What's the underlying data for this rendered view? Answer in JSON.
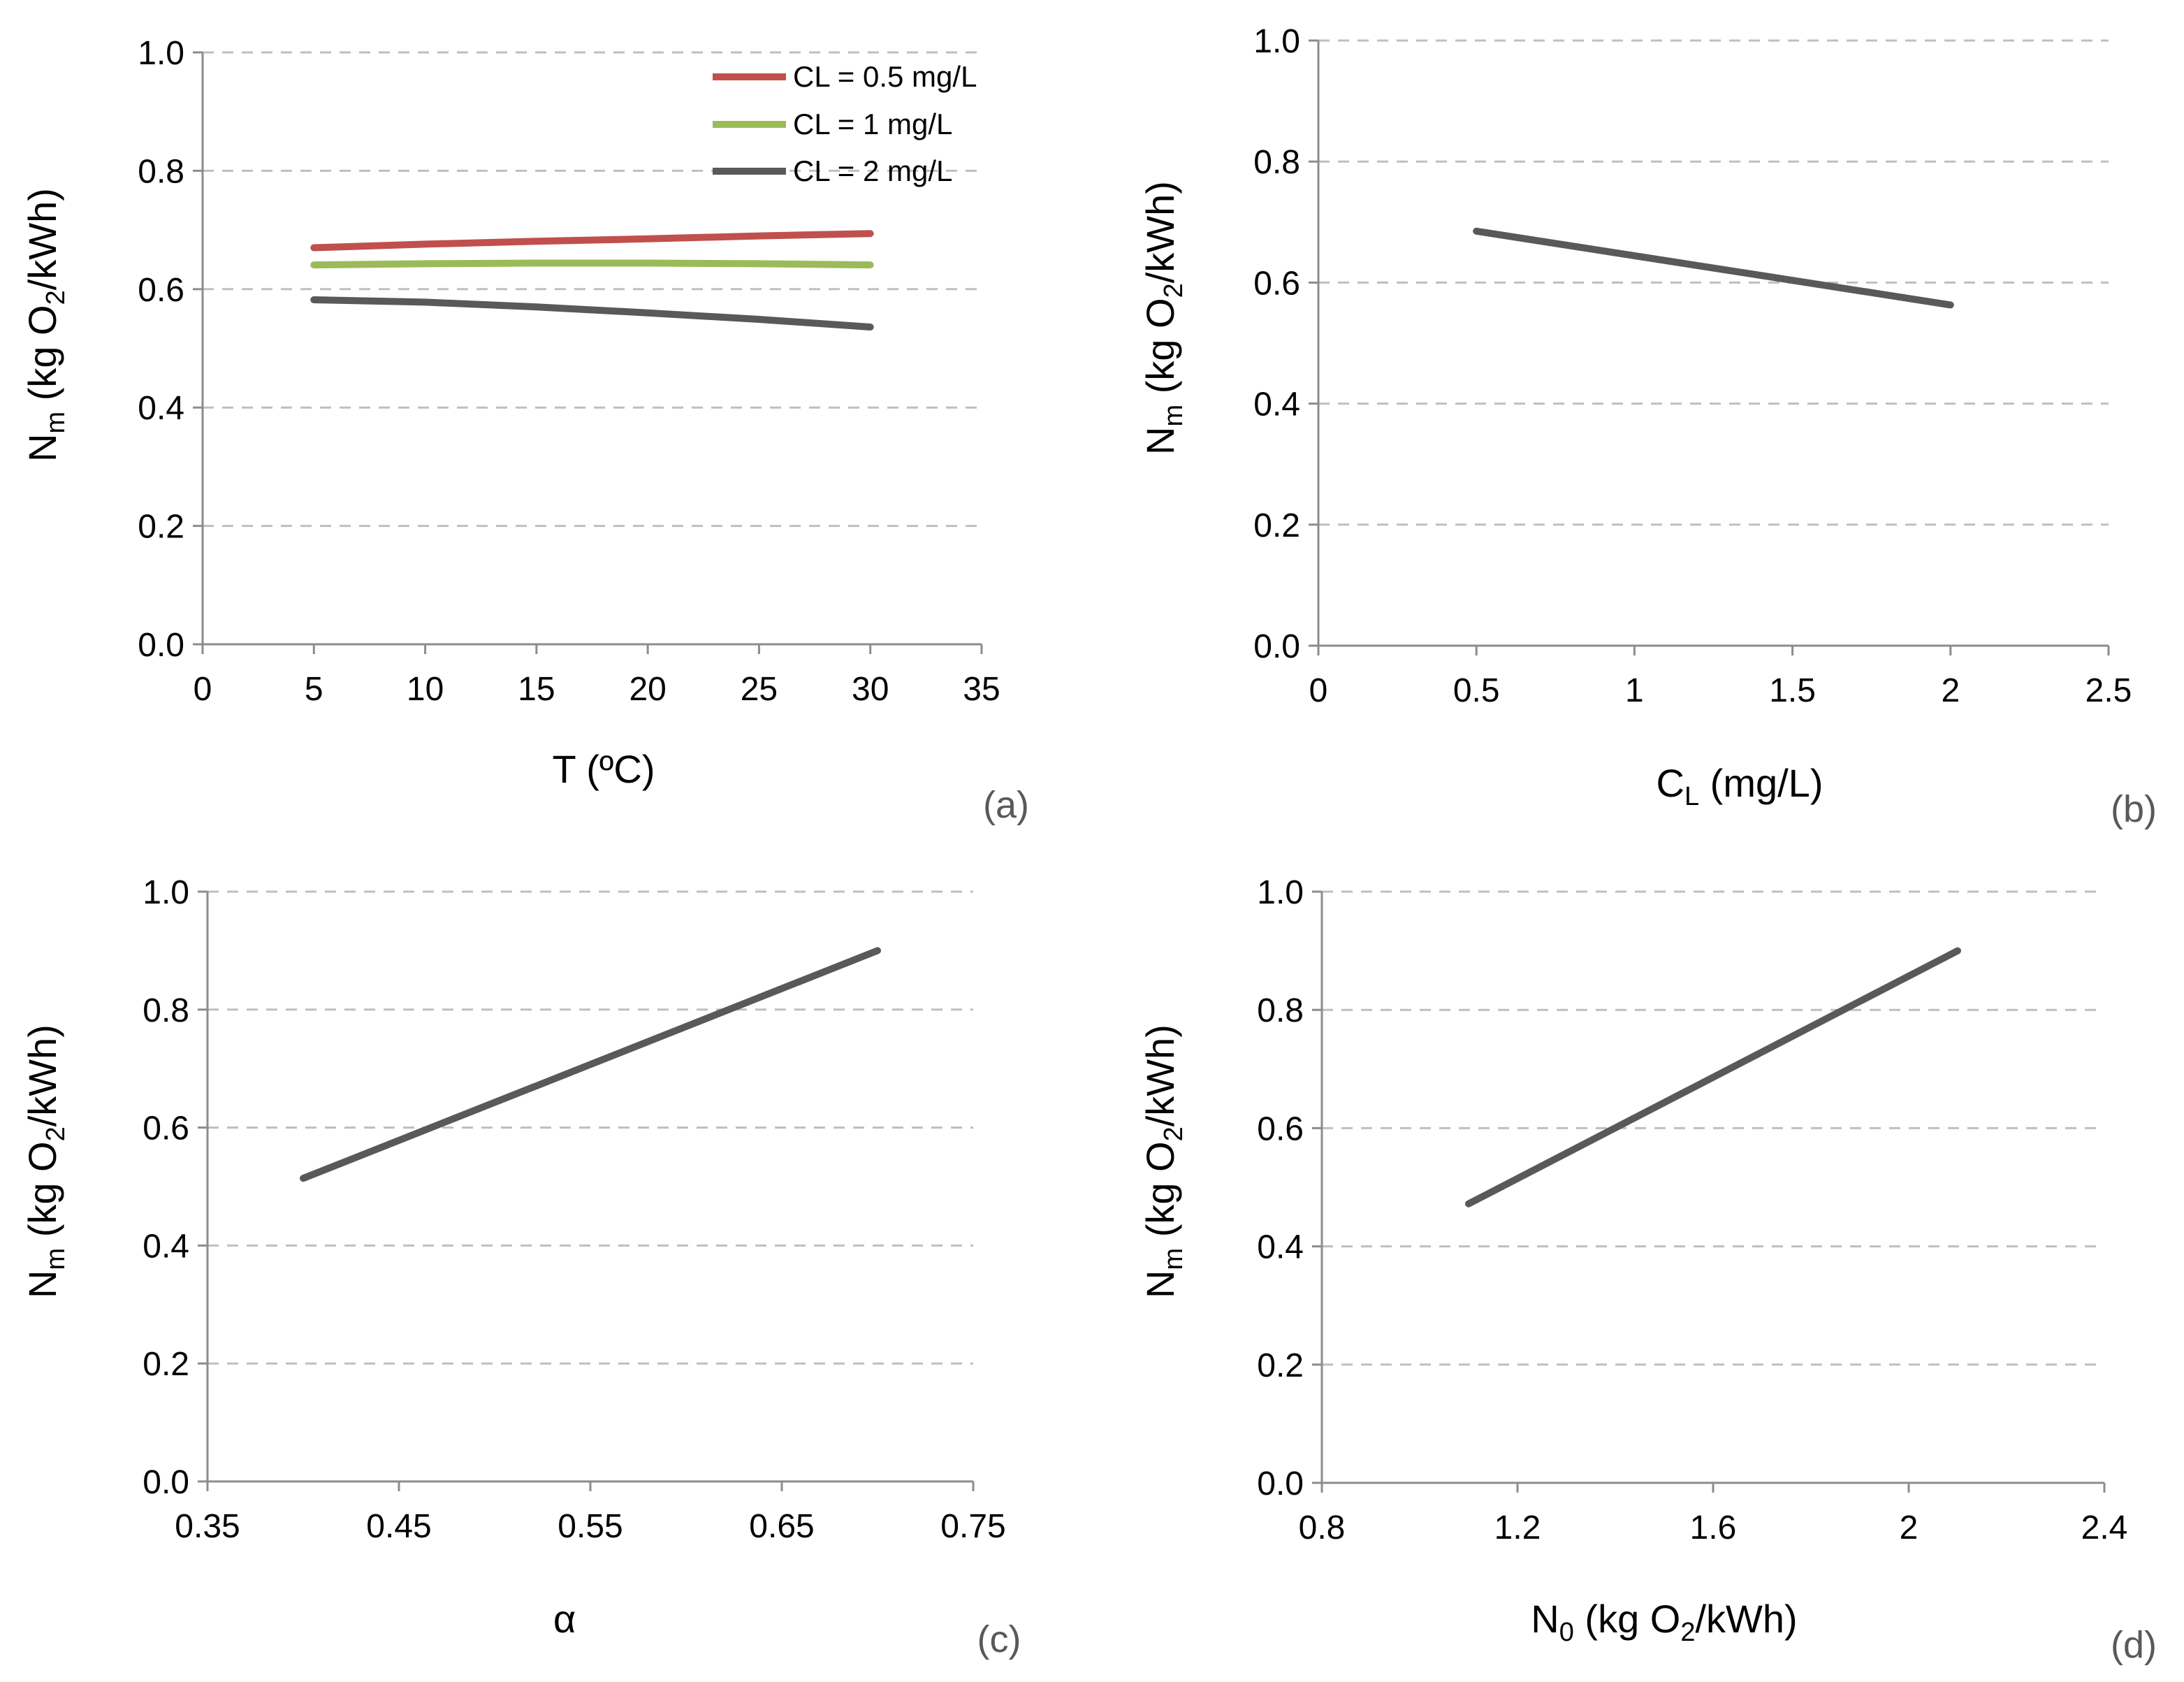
{
  "colors": {
    "red": "#c0504d",
    "green": "#9bbb59",
    "dark": "#595959"
  },
  "chart_data": [
    {
      "type": "line",
      "panel": "(a)",
      "xlabel": "T (ºC)",
      "ylabel_main": "N",
      "ylabel_sub": "m",
      "ylabel_rest_a": " (kg O",
      "ylabel_rest_sub": "2",
      "ylabel_rest_b": "/kWh)",
      "xlim": [
        0,
        35
      ],
      "ylim": [
        0,
        1
      ],
      "xticks": [
        "0",
        "5",
        "10",
        "15",
        "20",
        "25",
        "30",
        "35"
      ],
      "xtick_values": [
        0,
        5,
        10,
        15,
        20,
        25,
        30,
        35
      ],
      "yticks": [
        "0.0",
        "0.2",
        "0.4",
        "0.6",
        "0.8",
        "1.0"
      ],
      "ytick_values": [
        0,
        0.2,
        0.4,
        0.6,
        0.8,
        1.0
      ],
      "grid": true,
      "legend_position": "top-right",
      "x": [
        5,
        10,
        15,
        20,
        25,
        30
      ],
      "series": [
        {
          "name": "CL = 0.5 mg/L",
          "color": "#c0504d",
          "values": [
            0.67,
            0.676,
            0.681,
            0.685,
            0.69,
            0.694
          ]
        },
        {
          "name": "CL = 1 mg/L",
          "color": "#9bbb59",
          "values": [
            0.641,
            0.643,
            0.644,
            0.644,
            0.643,
            0.641
          ]
        },
        {
          "name": "CL = 2 mg/L",
          "color": "#595959",
          "values": [
            0.582,
            0.578,
            0.57,
            0.56,
            0.549,
            0.536
          ]
        }
      ]
    },
    {
      "type": "line",
      "panel": "(b)",
      "xlabel_main": "C",
      "xlabel_sub": "L",
      "xlabel_rest": " (mg/L)",
      "ylabel_main": "N",
      "ylabel_sub": "m",
      "ylabel_rest_a": " (kg O",
      "ylabel_rest_sub": "2",
      "ylabel_rest_b": "/kWh)",
      "xlim": [
        0,
        2.5
      ],
      "ylim": [
        0,
        1
      ],
      "xticks": [
        "0",
        "0.5",
        "1",
        "1.5",
        "2",
        "2.5"
      ],
      "xtick_values": [
        0,
        0.5,
        1,
        1.5,
        2,
        2.5
      ],
      "yticks": [
        "0.0",
        "0.2",
        "0.4",
        "0.6",
        "0.8",
        "1.0"
      ],
      "ytick_values": [
        0,
        0.2,
        0.4,
        0.6,
        0.8,
        1.0
      ],
      "grid": true,
      "x": [
        0.5,
        2
      ],
      "series": [
        {
          "color": "#595959",
          "values": [
            0.685,
            0.563
          ]
        }
      ]
    },
    {
      "type": "line",
      "panel": "(c)",
      "xlabel": "α",
      "ylabel_main": "N",
      "ylabel_sub": "m",
      "ylabel_rest_a": " (kg O",
      "ylabel_rest_sub": "2",
      "ylabel_rest_b": "/kWh)",
      "xlim": [
        0.35,
        0.75
      ],
      "ylim": [
        0,
        1
      ],
      "xticks": [
        "0.35",
        "0.45",
        "0.55",
        "0.65",
        "0.75"
      ],
      "xtick_values": [
        0.35,
        0.45,
        0.55,
        0.65,
        0.75
      ],
      "yticks": [
        "0.0",
        "0.2",
        "0.4",
        "0.6",
        "0.8",
        "1.0"
      ],
      "ytick_values": [
        0,
        0.2,
        0.4,
        0.6,
        0.8,
        1.0
      ],
      "grid": true,
      "x": [
        0.4,
        0.7
      ],
      "series": [
        {
          "color": "#595959",
          "values": [
            0.514,
            0.9
          ]
        }
      ]
    },
    {
      "type": "line",
      "panel": "(d)",
      "xlabel_main": "N",
      "xlabel_sub": "0",
      "xlabel_rest": " (kg O",
      "xlabel_rest_sub": "2",
      "xlabel_rest_b": "/kWh)",
      "ylabel_main": "N",
      "ylabel_sub": "m",
      "ylabel_rest_a": " (kg O",
      "ylabel_rest_sub": "2",
      "ylabel_rest_b": "/kWh)",
      "xlim": [
        0.8,
        2.4
      ],
      "ylim": [
        0,
        1
      ],
      "xticks": [
        "0.8",
        "1.2",
        "1.6",
        "2",
        "2.4"
      ],
      "xtick_values": [
        0.8,
        1.2,
        1.6,
        2.0,
        2.4
      ],
      "yticks": [
        "0.0",
        "0.2",
        "0.4",
        "0.6",
        "0.8",
        "1.0"
      ],
      "ytick_values": [
        0,
        0.2,
        0.4,
        0.6,
        0.8,
        1.0
      ],
      "grid": true,
      "x": [
        1.1,
        2.1
      ],
      "series": [
        {
          "color": "#595959",
          "values": [
            0.472,
            0.9
          ]
        }
      ]
    }
  ]
}
